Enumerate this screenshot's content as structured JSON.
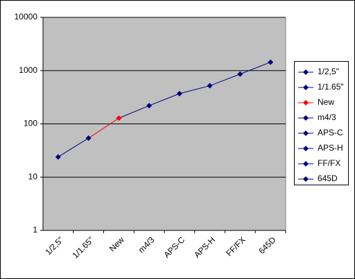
{
  "chart_data": {
    "type": "line",
    "categories": [
      "1/2,5\"",
      "1/1.65\"",
      "New",
      "m4/3",
      "APS-C",
      "APS-H",
      "FF/FX",
      "645D"
    ],
    "values": [
      24,
      54,
      128,
      220,
      370,
      520,
      860,
      1440
    ],
    "colors": [
      "#000080",
      "#000080",
      "#ff0000",
      "#000080",
      "#000080",
      "#000080",
      "#000080",
      "#000080"
    ],
    "ylim": [
      1,
      10000
    ],
    "yticks": [
      1,
      10,
      100,
      1000,
      10000
    ],
    "log_y": true,
    "grid": true,
    "legend": "right"
  }
}
